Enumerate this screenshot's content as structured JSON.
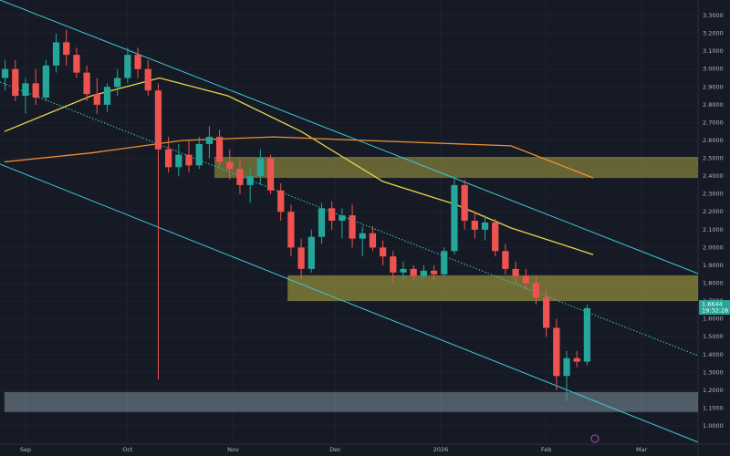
{
  "chart_data": {
    "type": "candlestick",
    "x": [
      -6,
      -3,
      0,
      3,
      6,
      9,
      12,
      15,
      18,
      21,
      24,
      27,
      30,
      33,
      36,
      39,
      42,
      45,
      48,
      51,
      54,
      57,
      60,
      63,
      66,
      69,
      72,
      75,
      78,
      81,
      84,
      87,
      90,
      93,
      96,
      99,
      102,
      105,
      108,
      111,
      114,
      117,
      120,
      123,
      126,
      129,
      132,
      135,
      138,
      141,
      144,
      147,
      150,
      153,
      156,
      159,
      162,
      165
    ],
    "open": [
      2.95,
      3.0,
      2.85,
      2.92,
      2.84,
      3.02,
      3.15,
      3.08,
      2.98,
      2.86,
      2.8,
      2.9,
      2.95,
      3.08,
      3.0,
      2.88,
      2.55,
      2.45,
      2.52,
      2.46,
      2.58,
      2.62,
      2.48,
      2.44,
      2.35,
      2.4,
      2.5,
      2.32,
      2.2,
      2.0,
      1.88,
      2.06,
      2.22,
      2.15,
      2.18,
      2.05,
      2.08,
      2.0,
      1.95,
      1.86,
      1.88,
      1.84,
      1.87,
      1.85,
      1.98,
      2.35,
      2.15,
      2.1,
      2.14,
      1.98,
      1.88,
      1.84,
      1.8,
      1.72,
      1.55,
      1.28,
      1.38,
      1.36
    ],
    "high": [
      3.05,
      3.05,
      2.95,
      3.0,
      3.05,
      3.2,
      3.22,
      3.12,
      3.02,
      2.95,
      2.92,
      3.0,
      3.12,
      3.12,
      3.05,
      2.92,
      2.62,
      2.58,
      2.6,
      2.62,
      2.68,
      2.66,
      2.55,
      2.5,
      2.45,
      2.55,
      2.52,
      2.36,
      2.24,
      2.05,
      2.1,
      2.25,
      2.26,
      2.22,
      2.24,
      2.12,
      2.12,
      2.04,
      1.98,
      1.92,
      1.9,
      1.9,
      1.9,
      2.0,
      2.4,
      2.38,
      2.2,
      2.18,
      2.16,
      2.02,
      1.92,
      1.88,
      1.84,
      1.76,
      1.6,
      1.42,
      1.42,
      1.68
    ],
    "low": [
      2.88,
      2.82,
      2.75,
      2.8,
      2.82,
      2.98,
      3.02,
      2.95,
      2.82,
      2.75,
      2.76,
      2.85,
      2.92,
      2.95,
      2.85,
      1.26,
      2.42,
      2.4,
      2.42,
      2.44,
      2.5,
      2.45,
      2.38,
      2.3,
      2.25,
      2.35,
      2.3,
      2.15,
      1.95,
      1.82,
      1.86,
      2.02,
      2.1,
      2.05,
      2.0,
      1.95,
      1.98,
      1.9,
      1.8,
      1.82,
      1.82,
      1.82,
      1.82,
      1.84,
      1.96,
      2.1,
      2.05,
      2.04,
      1.95,
      1.85,
      1.8,
      1.76,
      1.68,
      1.5,
      1.2,
      1.14,
      1.33,
      1.34
    ],
    "close": [
      3.0,
      2.85,
      2.92,
      2.84,
      3.02,
      3.15,
      3.08,
      2.98,
      2.86,
      2.8,
      2.9,
      2.95,
      3.08,
      3.0,
      2.88,
      2.55,
      2.45,
      2.52,
      2.46,
      2.58,
      2.62,
      2.48,
      2.44,
      2.35,
      2.4,
      2.5,
      2.32,
      2.2,
      2.0,
      1.88,
      2.06,
      2.22,
      2.15,
      2.18,
      2.05,
      2.08,
      2.0,
      1.95,
      1.86,
      1.88,
      1.84,
      1.87,
      1.85,
      1.98,
      2.35,
      2.15,
      2.1,
      2.14,
      1.98,
      1.88,
      1.84,
      1.8,
      1.72,
      1.55,
      1.28,
      1.38,
      1.36,
      1.66
    ],
    "up_color": "#26a69a",
    "down_color": "#ef5350",
    "series": [
      {
        "color": "#e8d44d",
        "x": [
          -6.2,
          19.3,
          39.4,
          59.5,
          81,
          105,
          126.5,
          142.6,
          166.8
        ],
        "values": [
          2.65,
          2.85,
          2.95,
          2.85,
          2.65,
          2.37,
          2.24,
          2.11,
          1.96
        ]
      },
      {
        "color": "#f0902f",
        "x": [
          -6.2,
          19.3,
          46.1,
          72.9,
          113.1,
          142.6,
          153.4,
          166.8
        ],
        "values": [
          2.48,
          2.53,
          2.6,
          2.62,
          2.59,
          2.57,
          2.49,
          2.39
        ]
      }
    ],
    "trendlines": [
      {
        "color": "#3cc8d8",
        "style": "solid",
        "x": [
          -7.5,
          197.6
        ],
        "y": [
          3.387,
          1.854
        ]
      },
      {
        "color": "#3cc8d8",
        "style": "solid",
        "x": [
          -7.5,
          197.6
        ],
        "y": [
          2.467,
          0.909
        ]
      },
      {
        "color": "#3cc8d8",
        "style": "dotted",
        "x": [
          -7.5,
          197.6
        ],
        "y": [
          2.927,
          1.394
        ]
      }
    ],
    "zones": [
      {
        "color": "rgba(200,190,70,0.45)",
        "x": [
          55.5,
          197.6
        ],
        "y": [
          2.39,
          2.508
        ]
      },
      {
        "color": "rgba(200,190,70,0.5)",
        "x": [
          77,
          197.6
        ],
        "y": [
          1.7,
          1.844
        ]
      },
      {
        "color": "rgba(190,215,230,0.35)",
        "x": [
          -6.2,
          197.6
        ],
        "y": [
          1.078,
          1.19
        ]
      }
    ],
    "xlim": [
      -7.5,
      197.6
    ],
    "ylim": [
      0.898,
      3.387
    ],
    "xticks": [
      {
        "value": 0,
        "label": "Sep"
      },
      {
        "value": 30,
        "label": "Oct"
      },
      {
        "value": 61,
        "label": "Nov"
      },
      {
        "value": 91,
        "label": "Dec"
      },
      {
        "value": 122,
        "label": "2026"
      },
      {
        "value": 153,
        "label": "Feb"
      },
      {
        "value": 181,
        "label": "Mar"
      }
    ],
    "yticks": [
      {
        "value": 1.0,
        "label": "1.0000"
      },
      {
        "value": 1.1,
        "label": "1.1000"
      },
      {
        "value": 1.2,
        "label": "1.2000"
      },
      {
        "value": 1.3,
        "label": "1.3000"
      },
      {
        "value": 1.4,
        "label": "1.4000"
      },
      {
        "value": 1.5,
        "label": "1.5000"
      },
      {
        "value": 1.6,
        "label": "1.6000"
      },
      {
        "value": 1.7,
        "label": "1.7000"
      },
      {
        "value": 1.8,
        "label": "1.8000"
      },
      {
        "value": 1.9,
        "label": "1.9000"
      },
      {
        "value": 2.0,
        "label": "2.0000"
      },
      {
        "value": 2.1,
        "label": "2.1000"
      },
      {
        "value": 2.2,
        "label": "2.2000"
      },
      {
        "value": 2.3,
        "label": "2.3000"
      },
      {
        "value": 2.4,
        "label": "2.4000"
      },
      {
        "value": 2.5,
        "label": "2.5000"
      },
      {
        "value": 2.6,
        "label": "2.6000"
      },
      {
        "value": 2.7,
        "label": "2.7000"
      },
      {
        "value": 2.8,
        "label": "2.8000"
      },
      {
        "value": 2.9,
        "label": "2.9000"
      },
      {
        "value": 3.0,
        "label": "3.0000"
      },
      {
        "value": 3.1,
        "label": "3.1000"
      },
      {
        "value": 3.2,
        "label": "3.2000"
      },
      {
        "value": 3.3,
        "label": "3.3000"
      }
    ],
    "grid": true,
    "last_price": 1.6644,
    "countdown": "19:32:28",
    "last_price_color": "#26a69a"
  }
}
